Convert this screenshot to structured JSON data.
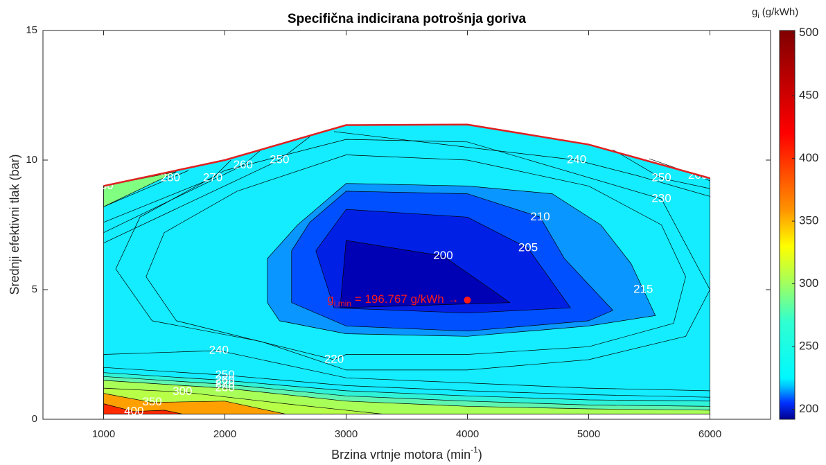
{
  "chart_data": {
    "type": "contour",
    "title": "Specifična indicirana potrošnja goriva",
    "xlabel": [
      "Brzina vrtnje motora (min",
      "-1",
      ")"
    ],
    "ylabel": "Srednji efektivni tlak (bar)",
    "xlim": [
      500,
      6500
    ],
    "xticks": [
      1000,
      2000,
      3000,
      4000,
      5000,
      6000
    ],
    "ylim": [
      0,
      15
    ],
    "yticks": [
      0,
      5,
      10,
      15
    ],
    "line_color": "#000000",
    "label_color": "#ffffff",
    "contours": [
      {
        "level": 250,
        "fill": "#14ecff",
        "closed": true,
        "points": [
          [
            1000,
            0.2
          ],
          [
            1000,
            9
          ],
          [
            2000,
            10
          ],
          [
            3000,
            11.35
          ],
          [
            4000,
            11.37
          ],
          [
            5000,
            10.6
          ],
          [
            6000,
            9.3
          ],
          [
            6000,
            0.2
          ]
        ]
      },
      {
        "level": 280,
        "fill": "#80ff80",
        "closed": true,
        "points": [
          [
            1000,
            8.2
          ],
          [
            1000,
            9
          ],
          [
            1600,
            9.55
          ]
        ]
      },
      {
        "level": 280,
        "closed": false,
        "points": [
          [
            1000,
            8.2
          ],
          [
            1550,
            9.3
          ],
          [
            1700,
            9.6
          ]
        ]
      },
      {
        "level": 270,
        "closed": false,
        "points": [
          [
            1000,
            7.6
          ],
          [
            1900,
            9.3
          ],
          [
            2050,
            10.0
          ]
        ]
      },
      {
        "level": 260,
        "closed": false,
        "points": [
          [
            1000,
            7.2
          ],
          [
            2150,
            9.8
          ],
          [
            2300,
            10.4
          ]
        ]
      },
      {
        "level": 250,
        "closed": false,
        "points": [
          [
            1000,
            6.8
          ],
          [
            2450,
            10.0
          ],
          [
            2700,
            10.9
          ]
        ]
      },
      {
        "level": 240,
        "closed": false,
        "points": [
          [
            2900,
            11.1
          ],
          [
            4900,
            10.0
          ],
          [
            5400,
            9.4
          ],
          [
            6000,
            8.6
          ]
        ]
      },
      {
        "level": 250,
        "closed": false,
        "points": [
          [
            5200,
            10.4
          ],
          [
            5600,
            9.3
          ],
          [
            6000,
            8.9
          ]
        ]
      },
      {
        "level": 260,
        "closed": false,
        "points": [
          [
            5500,
            10.05
          ],
          [
            5900,
            9.4
          ],
          [
            6000,
            9.2
          ]
        ]
      },
      {
        "level": 230,
        "closed": true,
        "points": [
          [
            4000,
            10.7
          ],
          [
            5600,
            8.5
          ],
          [
            6000,
            5
          ],
          [
            5800,
            3.2
          ],
          [
            5000,
            2.3
          ],
          [
            4000,
            1.9
          ],
          [
            3000,
            1.9
          ],
          [
            2300,
            3.0
          ],
          [
            1400,
            3.8
          ],
          [
            1100,
            5.8
          ],
          [
            1300,
            7.8
          ],
          [
            2000,
            9.6
          ],
          [
            3000,
            10.8
          ]
        ]
      },
      {
        "level": 220,
        "closed": true,
        "points": [
          [
            3000,
            2.5
          ],
          [
            2900,
            2.3
          ],
          [
            1600,
            3.8
          ],
          [
            1350,
            5.5
          ],
          [
            1500,
            7.2
          ],
          [
            2100,
            8.8
          ],
          [
            3000,
            10.2
          ],
          [
            4000,
            10.0
          ],
          [
            5000,
            9.0
          ],
          [
            5600,
            7.5
          ],
          [
            5800,
            5.5
          ],
          [
            5700,
            3.7
          ],
          [
            5000,
            2.8
          ],
          [
            4000,
            2.5
          ]
        ]
      },
      {
        "level": 240,
        "fill": "#14ecff",
        "closed": true,
        "points": [
          [
            1000,
            2.5
          ],
          [
            1950,
            2.65
          ],
          [
            3000,
            1.6
          ],
          [
            4000,
            1.4
          ],
          [
            5000,
            1.2
          ],
          [
            6000,
            1.1
          ],
          [
            6000,
            0.2
          ],
          [
            1000,
            0.2
          ]
        ]
      },
      {
        "level": 250,
        "closed": true,
        "points": [
          [
            1000,
            2.0
          ],
          [
            2000,
            1.7
          ],
          [
            3000,
            1.3
          ],
          [
            4000,
            1.1
          ],
          [
            5000,
            0.95
          ],
          [
            6000,
            0.85
          ],
          [
            6000,
            0.2
          ],
          [
            1000,
            0.2
          ]
        ]
      },
      {
        "level": 260,
        "fill": "#2ff3d8",
        "closed": true,
        "points": [
          [
            1000,
            1.8
          ],
          [
            2000,
            1.5
          ],
          [
            3000,
            1.1
          ],
          [
            4000,
            0.9
          ],
          [
            5000,
            0.75
          ],
          [
            6000,
            0.7
          ],
          [
            6000,
            0.2
          ],
          [
            1000,
            0.2
          ]
        ]
      },
      {
        "level": 270,
        "fill": "#5ff5b0",
        "closed": true,
        "points": [
          [
            1000,
            1.65
          ],
          [
            2000,
            1.35
          ],
          [
            3000,
            0.9
          ],
          [
            4000,
            0.7
          ],
          [
            5000,
            0.55
          ],
          [
            6000,
            0.5
          ],
          [
            6000,
            0.2
          ],
          [
            1000,
            0.2
          ]
        ]
      },
      {
        "level": 280,
        "fill": "#a8ff58",
        "closed": true,
        "points": [
          [
            1000,
            1.5
          ],
          [
            2000,
            1.2
          ],
          [
            3000,
            0.7
          ],
          [
            4000,
            0.5
          ],
          [
            5000,
            0.4
          ],
          [
            6000,
            0.35
          ],
          [
            6000,
            0.2
          ],
          [
            1000,
            0.2
          ]
        ]
      },
      {
        "level": 300,
        "fill": "#b8ff48",
        "closed": true,
        "points": [
          [
            1000,
            1.2
          ],
          [
            1650,
            1.05
          ],
          [
            2500,
            0.6
          ],
          [
            3300,
            0.2
          ],
          [
            1000,
            0.2
          ]
        ]
      },
      {
        "level": 350,
        "fill": "#ffa000",
        "closed": true,
        "points": [
          [
            1000,
            1.0
          ],
          [
            1400,
            0.65
          ],
          [
            2000,
            0.7
          ],
          [
            2500,
            0.2
          ],
          [
            1000,
            0.2
          ]
        ]
      },
      {
        "level": 400,
        "fill": "#ff2a00",
        "closed": true,
        "points": [
          [
            1000,
            0.6
          ],
          [
            1250,
            0.3
          ],
          [
            1500,
            0.35
          ],
          [
            1650,
            0.2
          ],
          [
            1000,
            0.2
          ]
        ]
      },
      {
        "level": 215,
        "fill": "#0a96ff",
        "closed": true,
        "points": [
          [
            5550,
            4.0
          ],
          [
            5450,
            5.0
          ],
          [
            5350,
            6.0
          ],
          [
            5100,
            7.5
          ],
          [
            4700,
            8.7
          ],
          [
            4000,
            9.0
          ],
          [
            3000,
            9.1
          ],
          [
            2600,
            7.5
          ],
          [
            2350,
            6.2
          ],
          [
            2350,
            4.5
          ],
          [
            2450,
            3.8
          ],
          [
            3000,
            3.3
          ],
          [
            4000,
            3.2
          ],
          [
            5000,
            3.6
          ]
        ]
      },
      {
        "level": 210,
        "fill": "#0050ff",
        "closed": true,
        "points": [
          [
            4000,
            8.7
          ],
          [
            4600,
            7.8
          ],
          [
            4800,
            6.2
          ],
          [
            5200,
            4.2
          ],
          [
            5000,
            3.8
          ],
          [
            4000,
            3.4
          ],
          [
            3000,
            3.6
          ],
          [
            2550,
            4.5
          ],
          [
            2550,
            6.5
          ],
          [
            2700,
            7.6
          ],
          [
            3000,
            8.8
          ]
        ]
      },
      {
        "level": 205,
        "fill": "#0020e6",
        "closed": true,
        "points": [
          [
            4000,
            7.8
          ],
          [
            4500,
            6.6
          ],
          [
            4850,
            4.3
          ],
          [
            4000,
            4.1
          ],
          [
            2900,
            4.3
          ],
          [
            2750,
            6.5
          ],
          [
            3000,
            8.1
          ]
        ]
      },
      {
        "level": 200,
        "fill": "#0000b4",
        "closed": true,
        "points": [
          [
            3000,
            6.9
          ],
          [
            3800,
            6.3
          ],
          [
            4200,
            5.0
          ],
          [
            4350,
            4.5
          ],
          [
            2950,
            4.3
          ]
        ]
      }
    ],
    "boundary": {
      "x": [
        1000,
        2000,
        3000,
        4000,
        5000,
        6000
      ],
      "y": [
        9,
        10,
        11.35,
        11.37,
        10.6,
        9.3
      ],
      "color": "#e02020"
    },
    "min_point": {
      "x": 4000,
      "y": 4.6,
      "color": "#ff1a1a",
      "label": [
        "g",
        "i,min",
        " = 196.767 g/kWh →"
      ]
    },
    "colorbar": {
      "label": [
        "g",
        "i",
        " (g/kWh)"
      ],
      "clim": [
        192,
        502
      ],
      "ticks": [
        200,
        250,
        300,
        350,
        400,
        450,
        500
      ],
      "stops": [
        {
          "value": 192,
          "color": "#000090"
        },
        {
          "value": 205,
          "color": "#0030ff"
        },
        {
          "value": 218,
          "color": "#00c0ff"
        },
        {
          "value": 225,
          "color": "#00f8ff"
        },
        {
          "value": 270,
          "color": "#30ffd0"
        },
        {
          "value": 300,
          "color": "#a0ff60"
        },
        {
          "value": 330,
          "color": "#ffff00"
        },
        {
          "value": 360,
          "color": "#ff9000"
        },
        {
          "value": 420,
          "color": "#ff0000"
        },
        {
          "value": 502,
          "color": "#800000"
        }
      ]
    }
  }
}
